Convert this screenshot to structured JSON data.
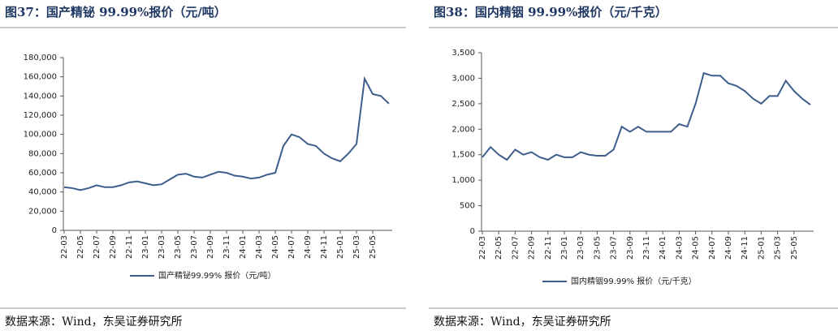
{
  "chart_data": [
    {
      "type": "line",
      "title": "图37：国产精铋 99.99%报价（元/吨）",
      "source": "数据来源：Wind，东吴证券研究所",
      "categories": [
        "22-03",
        null,
        "22-05",
        null,
        "22-07",
        null,
        "22-09",
        null,
        "22-11",
        null,
        "23-01",
        null,
        "23-03",
        null,
        "23-05",
        null,
        "23-07",
        null,
        "23-09",
        null,
        "23-11",
        null,
        "24-01",
        null,
        "24-03",
        null,
        "24-05",
        null,
        "24-07",
        null,
        "24-09",
        null,
        "24-11",
        null,
        "25-01",
        null,
        "25-03",
        null,
        "25-05",
        null,
        null
      ],
      "series": [
        {
          "name": "国产精铋99.99% 报价（元/吨）",
          "color": "#3d5e8c",
          "values": [
            45000,
            44000,
            42000,
            44000,
            47000,
            45000,
            45000,
            47000,
            50000,
            51000,
            49000,
            47000,
            48000,
            53000,
            58000,
            59000,
            56000,
            55000,
            58000,
            61000,
            60000,
            57000,
            56000,
            54000,
            55000,
            58000,
            60000,
            88000,
            100000,
            97000,
            90000,
            88000,
            80000,
            75000,
            72000,
            80000,
            90000,
            158000,
            142000,
            140000,
            132000
          ]
        }
      ],
      "ylim": [
        0,
        180000
      ],
      "yticks": [
        0,
        {
          "value": 20000,
          "label": "20,000"
        },
        {
          "value": 40000,
          "label": "40,000"
        },
        {
          "value": 60000,
          "label": "60,000"
        },
        {
          "value": 80000,
          "label": "80,000"
        },
        {
          "value": 100000,
          "label": "100,000"
        },
        {
          "value": 120000,
          "label": "120,000"
        },
        {
          "value": 140000,
          "label": "140,000"
        },
        {
          "value": 160000,
          "label": "160,000"
        },
        {
          "value": 180000,
          "label": "180,000"
        }
      ]
    },
    {
      "type": "line",
      "title": "图38：国内精铟 99.99%报价（元/千克）",
      "source": "数据来源：Wind，东吴证券研究所",
      "categories": [
        "22-03",
        null,
        "22-05",
        null,
        "22-07",
        null,
        "22-09",
        null,
        "22-11",
        null,
        "23-01",
        null,
        "23-03",
        null,
        "23-05",
        null,
        "23-07",
        null,
        "23-09",
        null,
        "23-11",
        null,
        "24-01",
        null,
        "24-03",
        null,
        "24-05",
        null,
        "24-07",
        null,
        "24-09",
        null,
        "24-11",
        null,
        "25-01",
        null,
        "25-03",
        null,
        "25-05",
        null,
        null
      ],
      "series": [
        {
          "name": "国内精铟99.99% 报价（元/千克）",
          "color": "#3d5e8c",
          "values": [
            1450,
            1650,
            1500,
            1400,
            1600,
            1500,
            1550,
            1450,
            1400,
            1500,
            1450,
            1450,
            1550,
            1500,
            1480,
            1480,
            1600,
            2050,
            1950,
            2050,
            1950,
            1950,
            1950,
            1950,
            2100,
            2050,
            2500,
            3100,
            3050,
            3050,
            2900,
            2850,
            2750,
            2600,
            2500,
            2650,
            2650,
            2950,
            2750,
            2600,
            2480
          ]
        }
      ],
      "ylim": [
        0,
        3500
      ],
      "yticks": [
        0,
        500,
        {
          "value": 1000,
          "label": "1,000"
        },
        {
          "value": 1500,
          "label": "1,500"
        },
        {
          "value": 2000,
          "label": "2,000"
        },
        {
          "value": 2500,
          "label": "2,500"
        },
        {
          "value": 3000,
          "label": "3,000"
        },
        {
          "value": 3500,
          "label": "3,500"
        }
      ]
    }
  ]
}
